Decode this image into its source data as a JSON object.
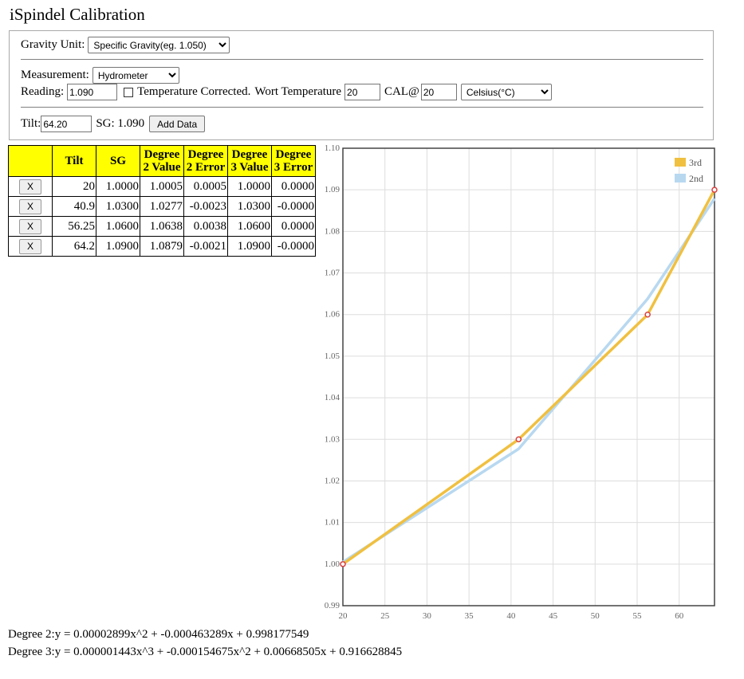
{
  "title": "iSpindel Calibration",
  "gravity": {
    "label": "Gravity Unit:",
    "selected": "Specific Gravity(eg. 1.050)"
  },
  "measurement": {
    "label": "Measurement:",
    "selected": "Hydrometer"
  },
  "reading": {
    "label": "Reading:",
    "value": "1.090",
    "temp_corrected_label": "Temperature Corrected.",
    "wort_temp_label": "Wort Temperature",
    "wort_temp_value": "20",
    "cal_label": "CAL@",
    "cal_value": "20",
    "temp_unit_selected": "Celsius(°C)"
  },
  "tilt": {
    "label": "Tilt:",
    "value": "64.20",
    "sg_text": "SG: 1.090",
    "add_button": "Add Data"
  },
  "table": {
    "headers": [
      "",
      "Tilt",
      "SG",
      "Degree 2 Value",
      "Degree 2 Error",
      "Degree 3 Value",
      "Degree 3 Error"
    ],
    "delete_label": "X",
    "rows": [
      [
        "20",
        "1.0000",
        "1.0005",
        "0.0005",
        "1.0000",
        "0.0000"
      ],
      [
        "40.9",
        "1.0300",
        "1.0277",
        "-0.0023",
        "1.0300",
        "-0.0000"
      ],
      [
        "56.25",
        "1.0600",
        "1.0638",
        "0.0038",
        "1.0600",
        "0.0000"
      ],
      [
        "64.2",
        "1.0900",
        "1.0879",
        "-0.0021",
        "1.0900",
        "-0.0000"
      ]
    ]
  },
  "chart_data": {
    "type": "line",
    "x_ticks": [
      20,
      25,
      30,
      35,
      40,
      45,
      50,
      55,
      60
    ],
    "y_ticks": [
      "0.99",
      "1.00",
      "1.01",
      "1.02",
      "1.03",
      "1.04",
      "1.05",
      "1.06",
      "1.07",
      "1.08",
      "1.09",
      "1.10"
    ],
    "xlim": [
      20,
      64.2
    ],
    "ylim": [
      0.99,
      1.1
    ],
    "grid": true,
    "legend_position": "top-right",
    "series": [
      {
        "name": "3rd",
        "color": "#f0c040",
        "x": [
          20,
          40.9,
          56.25,
          64.2
        ],
        "values": [
          1.0,
          1.03,
          1.06,
          1.09
        ]
      },
      {
        "name": "2nd",
        "color": "#b8d8f0",
        "x": [
          20,
          40.9,
          56.25,
          64.2
        ],
        "values": [
          1.0005,
          1.0277,
          1.0638,
          1.0879
        ]
      }
    ],
    "points": {
      "color": "#d94040",
      "x": [
        20,
        40.9,
        56.25,
        64.2
      ],
      "values": [
        1.0,
        1.03,
        1.06,
        1.09
      ]
    }
  },
  "equations": {
    "deg2": "Degree 2:y = 0.00002899x^2 + -0.000463289x + 0.998177549",
    "deg3": "Degree 3:y = 0.000001443x^3 + -0.000154675x^2 + 0.00668505x + 0.916628845"
  }
}
